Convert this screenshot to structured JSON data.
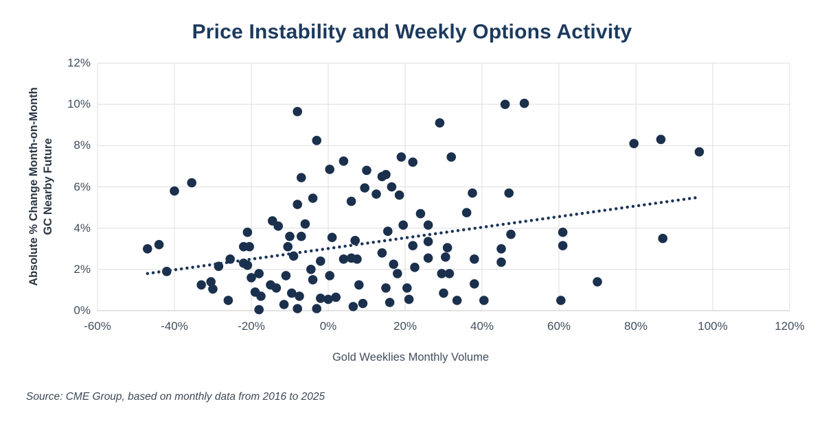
{
  "chart_data": {
    "type": "scatter",
    "title": "Price Instability and Weekly Options Activity",
    "xlabel": "Gold Weeklies Monthly Volume",
    "ylabel_lines": [
      "Absolute % Change Month-on-Month",
      "GC Nearby  Future"
    ],
    "source": "Source: CME Group, based on monthly data from 2016 to 2025",
    "xlim": [
      -60,
      120
    ],
    "ylim": [
      0,
      12
    ],
    "x_ticks": [
      {
        "value": -60,
        "label": "-60%"
      },
      {
        "value": -40,
        "label": "-40%"
      },
      {
        "value": -20,
        "label": "-20%"
      },
      {
        "value": 0,
        "label": "0%"
      },
      {
        "value": 20,
        "label": "20%"
      },
      {
        "value": 40,
        "label": "40%"
      },
      {
        "value": 60,
        "label": "60%"
      },
      {
        "value": 80,
        "label": "80%"
      },
      {
        "value": 100,
        "label": "100%"
      },
      {
        "value": 120,
        "label": "120%"
      }
    ],
    "y_ticks": [
      {
        "value": 0,
        "label": "0%"
      },
      {
        "value": 2,
        "label": "2%"
      },
      {
        "value": 4,
        "label": "4%"
      },
      {
        "value": 6,
        "label": "6%"
      },
      {
        "value": 8,
        "label": "8%"
      },
      {
        "value": 10,
        "label": "10%"
      },
      {
        "value": 12,
        "label": "12%"
      }
    ],
    "grid": true,
    "legend": "none",
    "colors": {
      "point": "#1a304d",
      "trend": "#1c3557",
      "title": "#1c3a5e",
      "gridline": "#dedede",
      "axis_line": "#c4c4c4",
      "tick_text": "#414e5c"
    },
    "trendline": {
      "style": "dotted",
      "x1": -47,
      "y1": 1.8,
      "x2": 96.5,
      "y2": 5.5
    },
    "points": [
      [
        -47,
        3.0
      ],
      [
        -44,
        3.2
      ],
      [
        -42,
        1.9
      ],
      [
        -40,
        5.8
      ],
      [
        -35.5,
        6.2
      ],
      [
        -33,
        1.25
      ],
      [
        -30.5,
        1.4
      ],
      [
        -30,
        1.05
      ],
      [
        -28.5,
        2.15
      ],
      [
        -26,
        0.5
      ],
      [
        -25.5,
        2.5
      ],
      [
        -22,
        3.1
      ],
      [
        -20.5,
        3.1
      ],
      [
        -22,
        2.3
      ],
      [
        -21,
        2.2
      ],
      [
        -21,
        3.8
      ],
      [
        -20,
        1.6
      ],
      [
        -19,
        0.9
      ],
      [
        -17.5,
        0.7
      ],
      [
        -18,
        1.8
      ],
      [
        -18,
        0.05
      ],
      [
        -15,
        1.25
      ],
      [
        -13.5,
        1.1
      ],
      [
        -14.5,
        4.35
      ],
      [
        -13,
        4.1
      ],
      [
        -11.5,
        0.3
      ],
      [
        -11,
        1.7
      ],
      [
        -10,
        3.6
      ],
      [
        -10.5,
        3.1
      ],
      [
        -9.5,
        0.85
      ],
      [
        -9,
        2.65
      ],
      [
        -8,
        9.65
      ],
      [
        -8,
        5.15
      ],
      [
        -8,
        0.1
      ],
      [
        -7.5,
        0.7
      ],
      [
        -7,
        3.6
      ],
      [
        -7,
        6.45
      ],
      [
        -6,
        4.2
      ],
      [
        -4.5,
        2.0
      ],
      [
        -4,
        1.5
      ],
      [
        -4,
        5.45
      ],
      [
        -3,
        8.25
      ],
      [
        -3,
        0.1
      ],
      [
        -2,
        2.4
      ],
      [
        -2,
        0.6
      ],
      [
        0,
        0.55
      ],
      [
        0.4,
        6.85
      ],
      [
        0.4,
        1.7
      ],
      [
        1,
        3.55
      ],
      [
        2,
        0.65
      ],
      [
        4,
        2.5
      ],
      [
        4,
        7.25
      ],
      [
        6,
        2.55
      ],
      [
        7.5,
        2.5
      ],
      [
        6,
        5.3
      ],
      [
        6.5,
        0.2
      ],
      [
        7,
        3.4
      ],
      [
        8,
        1.25
      ],
      [
        9,
        0.35
      ],
      [
        9.5,
        5.95
      ],
      [
        10,
        6.8
      ],
      [
        12.5,
        5.65
      ],
      [
        14,
        6.5
      ],
      [
        15,
        6.6
      ],
      [
        14,
        2.8
      ],
      [
        15,
        1.1
      ],
      [
        15.5,
        3.85
      ],
      [
        16,
        0.4
      ],
      [
        16.5,
        6.0
      ],
      [
        17,
        2.25
      ],
      [
        18,
        1.8
      ],
      [
        19,
        7.45
      ],
      [
        18.5,
        5.6
      ],
      [
        19.5,
        4.15
      ],
      [
        20.5,
        1.1
      ],
      [
        21,
        0.55
      ],
      [
        22,
        7.2
      ],
      [
        22,
        3.15
      ],
      [
        22.5,
        2.1
      ],
      [
        24,
        4.7
      ],
      [
        26,
        4.15
      ],
      [
        26,
        3.35
      ],
      [
        26,
        2.55
      ],
      [
        29,
        9.1
      ],
      [
        29.5,
        1.8
      ],
      [
        31.5,
        1.8
      ],
      [
        30,
        0.85
      ],
      [
        30.5,
        2.6
      ],
      [
        31,
        3.05
      ],
      [
        32,
        7.45
      ],
      [
        33.5,
        0.5
      ],
      [
        36,
        4.75
      ],
      [
        37.5,
        5.7
      ],
      [
        38,
        2.5
      ],
      [
        38,
        1.3
      ],
      [
        40.5,
        0.5
      ],
      [
        45,
        3.0
      ],
      [
        45,
        2.35
      ],
      [
        46,
        10.0
      ],
      [
        51,
        10.05
      ],
      [
        47,
        5.7
      ],
      [
        47.5,
        3.7
      ],
      [
        61,
        3.8
      ],
      [
        61,
        3.15
      ],
      [
        60.5,
        0.5
      ],
      [
        70,
        1.4
      ],
      [
        79.5,
        8.1
      ],
      [
        86.5,
        8.3
      ],
      [
        87,
        3.5
      ],
      [
        96.5,
        7.7
      ]
    ]
  }
}
